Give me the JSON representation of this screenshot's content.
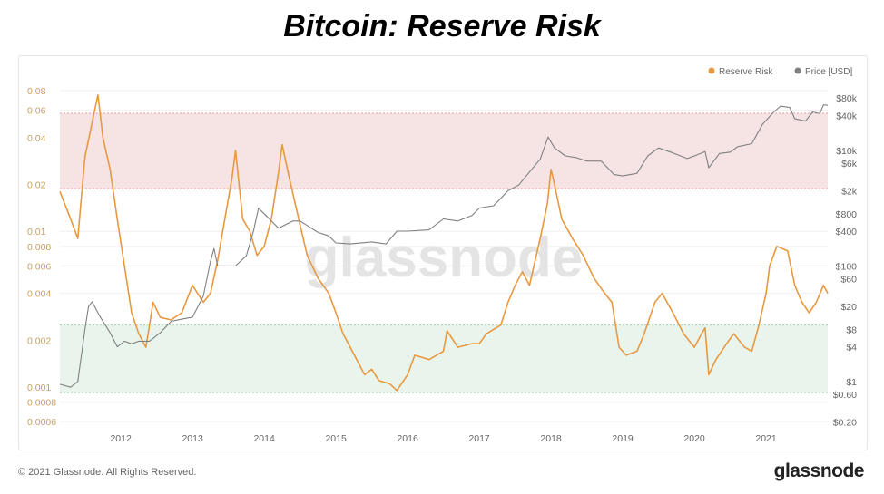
{
  "title": "Bitcoin: Reserve Risk",
  "footer": "© 2021 Glassnode. All Rights Reserved.",
  "brand": "glassnode",
  "watermark": "glassnode",
  "chart_data": {
    "type": "line",
    "title": "Bitcoin: Reserve Risk",
    "legend": {
      "placement": "top-right",
      "entries": [
        {
          "name": "Reserve Risk",
          "color": "#e8993f"
        },
        {
          "name": "Price [USD]",
          "color": "#808080"
        }
      ]
    },
    "x_ticks": [
      "2012",
      "2013",
      "2014",
      "2015",
      "2016",
      "2017",
      "2018",
      "2019",
      "2020",
      "2021"
    ],
    "xlim": [
      2011.15,
      2021.86
    ],
    "left_axis": {
      "scale": "log",
      "ylim": [
        0.00058,
        0.092
      ],
      "ticks": [
        0.08,
        0.06,
        0.04,
        0.02,
        0.01,
        0.008,
        0.006,
        0.004,
        0.002,
        0.001,
        0.0008,
        0.0006
      ],
      "tick_labels": [
        "0.08",
        "0.06",
        "0.04",
        "0.02",
        "0.01",
        "0.008",
        "0.006",
        "0.004",
        "0.002",
        "0.001",
        "0.0008",
        "0.0006"
      ]
    },
    "right_axis": {
      "scale": "log",
      "ylim": [
        0.19,
        95000
      ],
      "ticks": [
        80000,
        40000,
        10000,
        6000,
        2000,
        800,
        400,
        100,
        60,
        20,
        8,
        4,
        1,
        0.6,
        0.2
      ],
      "tick_labels": [
        "$80k",
        "$40k",
        "$10k",
        "$6k",
        "$2k",
        "$800",
        "$400",
        "$100",
        "$60",
        "$20",
        "$8",
        "$4",
        "$1",
        "$0.60",
        "$0.20"
      ]
    },
    "bands": [
      {
        "name": "high-risk",
        "range": [
          0.0188,
          0.0573
        ],
        "color": "#f5e4e3",
        "line": "#e8a0a0"
      },
      {
        "name": "low-risk",
        "range": [
          0.00092,
          0.0025
        ],
        "color": "#e9f4ec",
        "line": "#a8d4b4"
      }
    ],
    "series": [
      {
        "name": "Reserve Risk",
        "axis": "left",
        "color": "#e8993f",
        "points": [
          [
            2011.15,
            0.018
          ],
          [
            2011.3,
            0.012
          ],
          [
            2011.4,
            0.009
          ],
          [
            2011.5,
            0.03
          ],
          [
            2011.6,
            0.05
          ],
          [
            2011.68,
            0.075
          ],
          [
            2011.75,
            0.04
          ],
          [
            2011.85,
            0.025
          ],
          [
            2011.95,
            0.012
          ],
          [
            2012.05,
            0.006
          ],
          [
            2012.15,
            0.003
          ],
          [
            2012.25,
            0.0022
          ],
          [
            2012.35,
            0.0018
          ],
          [
            2012.45,
            0.0035
          ],
          [
            2012.55,
            0.0028
          ],
          [
            2012.7,
            0.0027
          ],
          [
            2012.85,
            0.003
          ],
          [
            2013.0,
            0.0045
          ],
          [
            2013.15,
            0.0035
          ],
          [
            2013.25,
            0.004
          ],
          [
            2013.35,
            0.0065
          ],
          [
            2013.45,
            0.012
          ],
          [
            2013.55,
            0.022
          ],
          [
            2013.6,
            0.033
          ],
          [
            2013.7,
            0.012
          ],
          [
            2013.8,
            0.01
          ],
          [
            2013.9,
            0.007
          ],
          [
            2014.0,
            0.008
          ],
          [
            2014.1,
            0.012
          ],
          [
            2014.2,
            0.024
          ],
          [
            2014.25,
            0.036
          ],
          [
            2014.35,
            0.022
          ],
          [
            2014.5,
            0.011
          ],
          [
            2014.6,
            0.007
          ],
          [
            2014.75,
            0.005
          ],
          [
            2014.9,
            0.004
          ],
          [
            2015.0,
            0.003
          ],
          [
            2015.1,
            0.0022
          ],
          [
            2015.2,
            0.0018
          ],
          [
            2015.4,
            0.0012
          ],
          [
            2015.5,
            0.0013
          ],
          [
            2015.6,
            0.0011
          ],
          [
            2015.75,
            0.00105
          ],
          [
            2015.85,
            0.00095
          ],
          [
            2016.0,
            0.0012
          ],
          [
            2016.1,
            0.0016
          ],
          [
            2016.3,
            0.0015
          ],
          [
            2016.5,
            0.0017
          ],
          [
            2016.55,
            0.0023
          ],
          [
            2016.7,
            0.0018
          ],
          [
            2016.9,
            0.0019
          ],
          [
            2017.0,
            0.0019
          ],
          [
            2017.1,
            0.0022
          ],
          [
            2017.3,
            0.0025
          ],
          [
            2017.4,
            0.0035
          ],
          [
            2017.5,
            0.0045
          ],
          [
            2017.6,
            0.0055
          ],
          [
            2017.7,
            0.0045
          ],
          [
            2017.85,
            0.009
          ],
          [
            2017.95,
            0.015
          ],
          [
            2018.0,
            0.025
          ],
          [
            2018.05,
            0.02
          ],
          [
            2018.15,
            0.012
          ],
          [
            2018.3,
            0.009
          ],
          [
            2018.45,
            0.007
          ],
          [
            2018.6,
            0.005
          ],
          [
            2018.75,
            0.004
          ],
          [
            2018.85,
            0.0035
          ],
          [
            2018.95,
            0.0018
          ],
          [
            2019.05,
            0.0016
          ],
          [
            2019.2,
            0.0017
          ],
          [
            2019.3,
            0.0022
          ],
          [
            2019.45,
            0.0035
          ],
          [
            2019.55,
            0.004
          ],
          [
            2019.7,
            0.003
          ],
          [
            2019.85,
            0.0022
          ],
          [
            2020.0,
            0.0018
          ],
          [
            2020.1,
            0.0022
          ],
          [
            2020.15,
            0.0024
          ],
          [
            2020.2,
            0.0012
          ],
          [
            2020.3,
            0.0015
          ],
          [
            2020.45,
            0.0019
          ],
          [
            2020.55,
            0.0022
          ],
          [
            2020.7,
            0.0018
          ],
          [
            2020.8,
            0.0017
          ],
          [
            2020.9,
            0.0025
          ],
          [
            2021.0,
            0.004
          ],
          [
            2021.05,
            0.006
          ],
          [
            2021.15,
            0.008
          ],
          [
            2021.3,
            0.0075
          ],
          [
            2021.4,
            0.0045
          ],
          [
            2021.5,
            0.0035
          ],
          [
            2021.6,
            0.003
          ],
          [
            2021.7,
            0.0035
          ],
          [
            2021.8,
            0.0045
          ],
          [
            2021.86,
            0.004
          ]
        ]
      },
      {
        "name": "Price [USD]",
        "axis": "right",
        "color": "#808080",
        "points": [
          [
            2011.15,
            0.9
          ],
          [
            2011.3,
            0.8
          ],
          [
            2011.4,
            1
          ],
          [
            2011.5,
            8
          ],
          [
            2011.55,
            20
          ],
          [
            2011.6,
            24
          ],
          [
            2011.7,
            14
          ],
          [
            2011.85,
            7
          ],
          [
            2011.95,
            4
          ],
          [
            2012.05,
            5
          ],
          [
            2012.15,
            4.5
          ],
          [
            2012.25,
            5
          ],
          [
            2012.4,
            5
          ],
          [
            2012.55,
            7
          ],
          [
            2012.7,
            11
          ],
          [
            2012.85,
            12
          ],
          [
            2013.0,
            13
          ],
          [
            2013.15,
            30
          ],
          [
            2013.25,
            120
          ],
          [
            2013.3,
            200
          ],
          [
            2013.35,
            100
          ],
          [
            2013.5,
            100
          ],
          [
            2013.6,
            100
          ],
          [
            2013.75,
            150
          ],
          [
            2013.85,
            400
          ],
          [
            2013.92,
            1000
          ],
          [
            2014.0,
            800
          ],
          [
            2014.1,
            600
          ],
          [
            2014.2,
            450
          ],
          [
            2014.4,
            600
          ],
          [
            2014.5,
            600
          ],
          [
            2014.6,
            500
          ],
          [
            2014.75,
            380
          ],
          [
            2014.9,
            330
          ],
          [
            2015.0,
            250
          ],
          [
            2015.2,
            240
          ],
          [
            2015.5,
            260
          ],
          [
            2015.7,
            240
          ],
          [
            2015.85,
            400
          ],
          [
            2016.0,
            400
          ],
          [
            2016.3,
            420
          ],
          [
            2016.5,
            650
          ],
          [
            2016.7,
            600
          ],
          [
            2016.9,
            750
          ],
          [
            2017.0,
            1000
          ],
          [
            2017.2,
            1100
          ],
          [
            2017.4,
            2000
          ],
          [
            2017.55,
            2500
          ],
          [
            2017.7,
            4200
          ],
          [
            2017.85,
            7000
          ],
          [
            2017.96,
            17000
          ],
          [
            2018.05,
            11000
          ],
          [
            2018.2,
            8000
          ],
          [
            2018.35,
            7500
          ],
          [
            2018.5,
            6500
          ],
          [
            2018.7,
            6500
          ],
          [
            2018.88,
            3800
          ],
          [
            2019.0,
            3600
          ],
          [
            2019.2,
            4000
          ],
          [
            2019.35,
            8000
          ],
          [
            2019.5,
            11000
          ],
          [
            2019.7,
            9000
          ],
          [
            2019.9,
            7200
          ],
          [
            2020.0,
            8000
          ],
          [
            2020.15,
            9500
          ],
          [
            2020.2,
            5000
          ],
          [
            2020.35,
            8800
          ],
          [
            2020.5,
            9300
          ],
          [
            2020.6,
            11500
          ],
          [
            2020.8,
            13000
          ],
          [
            2020.95,
            28000
          ],
          [
            2021.1,
            45000
          ],
          [
            2021.2,
            58000
          ],
          [
            2021.33,
            55000
          ],
          [
            2021.4,
            35000
          ],
          [
            2021.55,
            32000
          ],
          [
            2021.65,
            46000
          ],
          [
            2021.75,
            43000
          ],
          [
            2021.8,
            61000
          ],
          [
            2021.86,
            60000
          ]
        ]
      }
    ]
  }
}
